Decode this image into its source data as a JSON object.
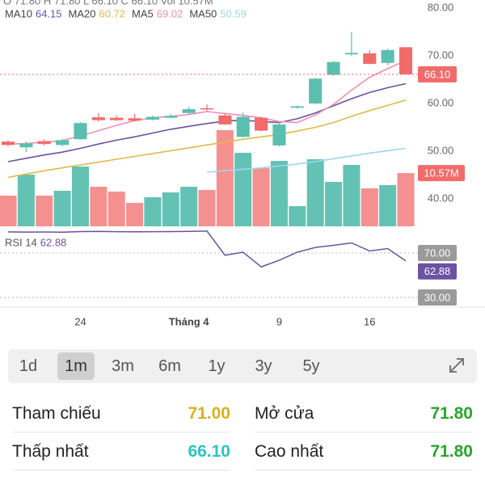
{
  "header": {
    "ohlc_line": "O 71.80 H 71.80 L 66.10 C 66.10 Vol 10.57M"
  },
  "chart_data": {
    "type": "candlestick",
    "categories": [
      null,
      null,
      null,
      null,
      "24",
      null,
      null,
      null,
      null,
      null,
      "Tháng 4",
      null,
      null,
      null,
      null,
      "9",
      null,
      null,
      null,
      null,
      "16",
      null,
      null
    ],
    "open": [
      52.0,
      50.8,
      52.1,
      51.3,
      52.5,
      57.1,
      57.0,
      56.9,
      56.6,
      57.0,
      58.0,
      59.0,
      57.5,
      53.0,
      57.0,
      51.2,
      59.1,
      60.0,
      66.0,
      70.3,
      70.5,
      68.5,
      71.8
    ],
    "high": [
      52.3,
      52.0,
      52.5,
      52.6,
      56.1,
      58.0,
      57.5,
      57.8,
      57.5,
      57.8,
      59.3,
      59.8,
      58.0,
      58.1,
      57.2,
      56.1,
      59.6,
      65.4,
      68.9,
      75.0,
      71.2,
      71.5,
      71.8
    ],
    "low": [
      51.0,
      49.8,
      51.2,
      51.0,
      52.4,
      56.2,
      56.3,
      56.2,
      56.4,
      56.9,
      57.7,
      58.4,
      55.5,
      52.8,
      54.1,
      51.0,
      58.9,
      59.8,
      65.8,
      70.0,
      68.2,
      68.0,
      66.1
    ],
    "close": [
      51.3,
      51.6,
      51.5,
      52.3,
      55.9,
      56.5,
      56.5,
      56.4,
      57.2,
      57.4,
      58.8,
      58.8,
      55.6,
      57.2,
      54.3,
      55.6,
      59.4,
      65.2,
      68.7,
      70.6,
      68.3,
      71.2,
      66.1
    ],
    "up_color": "#5bbfb0",
    "down_color": "#f26b6b",
    "series": [
      {
        "name": "MA10",
        "color": "#6b52a3",
        "values": [
          47.8,
          48.5,
          49.2,
          49.8,
          50.6,
          51.5,
          52.3,
          53.0,
          53.8,
          54.6,
          55.2,
          55.8,
          56.3,
          56.5,
          56.2,
          56.0,
          56.8,
          58.0,
          59.5,
          61.0,
          62.3,
          63.3,
          64.15
        ]
      },
      {
        "name": "MA20",
        "color": "#e5b84a",
        "values": [
          44.5,
          45.2,
          45.9,
          46.5,
          47.1,
          47.7,
          48.3,
          48.9,
          49.5,
          50.1,
          50.7,
          51.3,
          51.9,
          52.5,
          53.0,
          53.5,
          54.2,
          55.0,
          56.0,
          57.3,
          58.5,
          59.6,
          60.72
        ]
      },
      {
        "name": "MA5",
        "color": "#ee8fb3",
        "values": [
          51.5,
          51.6,
          51.9,
          52.2,
          53.2,
          54.3,
          55.4,
          56.4,
          57.0,
          57.3,
          57.7,
          58.3,
          57.9,
          57.5,
          57.0,
          56.2,
          56.0,
          57.6,
          59.8,
          62.8,
          65.5,
          67.3,
          69.02
        ]
      },
      {
        "name": "MA50",
        "color": "#9fd6ea",
        "values": [
          null,
          null,
          null,
          null,
          null,
          null,
          null,
          null,
          null,
          null,
          null,
          45.6,
          45.9,
          46.2,
          46.5,
          46.9,
          47.3,
          47.8,
          48.4,
          49.0,
          49.6,
          50.1,
          50.59
        ]
      }
    ],
    "ylim": [
      40,
      80
    ],
    "yticks": [
      {
        "value": 40,
        "label": "40.00"
      },
      {
        "value": 50,
        "label": "50.00"
      },
      {
        "value": 60,
        "label": "60.00"
      },
      {
        "value": 70,
        "label": "70.00"
      },
      {
        "value": 80,
        "label": "80.00"
      }
    ],
    "price_tag": {
      "value": 66.1,
      "label": "66.10"
    },
    "volume": [
      6.09,
      10.26,
      6.09,
      7.05,
      11.86,
      7.85,
      6.89,
      4.65,
      5.77,
      6.73,
      7.85,
      7.21,
      19.07,
      14.58,
      11.54,
      12.98,
      4.0,
      13.3,
      8.81,
      12.18,
      7.53,
      8.17,
      10.57
    ],
    "volume_lim": [
      0,
      21
    ],
    "volume_tag": {
      "value": 10.57,
      "label": "10.57M"
    },
    "rsi_name": "RSI 14",
    "rsi_color": "#6b52a3",
    "rsi": [
      89.0,
      88.8,
      88.9,
      88.7,
      89.3,
      89.4,
      89.2,
      89.1,
      89.2,
      89.3,
      89.5,
      89.8,
      68.0,
      70.7,
      57.6,
      63.5,
      70.7,
      75.0,
      76.9,
      79.1,
      71.8,
      74.0,
      62.88
    ],
    "rsi_lim": [
      30,
      70
    ],
    "rsi_ticks": [
      {
        "value": 70,
        "label": "70.00"
      },
      {
        "value": 30,
        "label": "30.00"
      }
    ]
  },
  "tabs": [
    "1d",
    "1m",
    "3m",
    "6m",
    "1y",
    "3y",
    "5y"
  ],
  "selected_tab": 1,
  "info": [
    [
      {
        "label": "Tham chiếu",
        "value": "71.00",
        "color": "#d9b21c"
      },
      {
        "label": "Mở cửa",
        "value": "71.80",
        "color": "#2aa52a"
      }
    ],
    [
      {
        "label": "Thấp nhất",
        "value": "66.10",
        "color": "#2bc4c4"
      },
      {
        "label": "Cao nhất",
        "value": "71.80",
        "color": "#2aa52a"
      }
    ]
  ]
}
